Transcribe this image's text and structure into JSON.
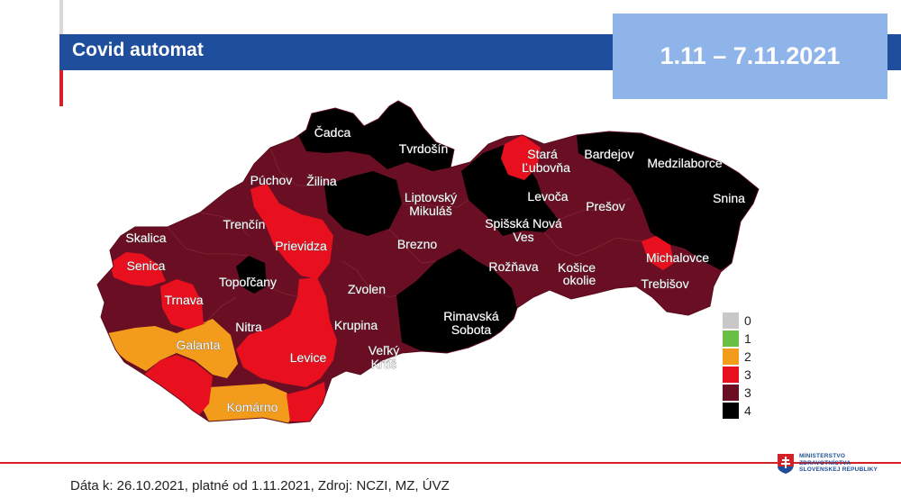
{
  "header": {
    "title": "Covid automat",
    "date_range": "1.11 – 7.11.2021"
  },
  "map": {
    "colors": {
      "0": "#c8c8c8",
      "1": "#6abf45",
      "2": "#f39c1c",
      "3": "#e8101e",
      "4": "#000000",
      "3dark": "#6a0f23"
    },
    "districts": [
      {
        "name": "Čadca",
        "level": 4
      },
      {
        "name": "Tvrdošín",
        "level": 4
      },
      {
        "name": "Stará Ľubovňa",
        "level": 3
      },
      {
        "name": "Bardejov",
        "level": 4
      },
      {
        "name": "Medzilaborce",
        "level": 4
      },
      {
        "name": "Púchov",
        "level": 3
      },
      {
        "name": "Žilina",
        "level": 3
      },
      {
        "name": "Liptovský Mikuláš",
        "level": 3
      },
      {
        "name": "Levoča",
        "level": 3
      },
      {
        "name": "Snina",
        "level": 4
      },
      {
        "name": "Trenčín",
        "level": 3
      },
      {
        "name": "Prešov",
        "level": 3
      },
      {
        "name": "Spišská Nová Ves",
        "level": 3
      },
      {
        "name": "Skalica",
        "level": 3
      },
      {
        "name": "Prievidza",
        "level": 3
      },
      {
        "name": "Brezno",
        "level": 3
      },
      {
        "name": "Senica",
        "level": 3
      },
      {
        "name": "Rožňava",
        "level": 3
      },
      {
        "name": "Košice okolie",
        "level": 3
      },
      {
        "name": "Michalovce",
        "level": 3
      },
      {
        "name": "Topoľčany",
        "level": 4
      },
      {
        "name": "Zvolen",
        "level": 3
      },
      {
        "name": "Trebišov",
        "level": 3
      },
      {
        "name": "Trnava",
        "level": 3
      },
      {
        "name": "Nitra",
        "level": 3
      },
      {
        "name": "Rimavská Sobota",
        "level": 4
      },
      {
        "name": "Krupina",
        "level": 3
      },
      {
        "name": "Galanta",
        "level": 2
      },
      {
        "name": "Veľký Krtíš",
        "level": 3
      },
      {
        "name": "Levice",
        "level": 3
      },
      {
        "name": "Komárno",
        "level": 2
      }
    ]
  },
  "legend": [
    {
      "label": "0",
      "color": "#c8c8c8"
    },
    {
      "label": "1",
      "color": "#6abf45"
    },
    {
      "label": "2",
      "color": "#f39c1c"
    },
    {
      "label": "3",
      "color": "#e8101e"
    },
    {
      "label": "3",
      "color": "#6a0f23"
    },
    {
      "label": "4",
      "color": "#000000"
    }
  ],
  "footer": {
    "text": "Dáta k: 26.10.2021, platné od 1.11.2021, Zdroj: NCZI, MZ, ÚVZ"
  },
  "ministry": {
    "line1": "MINISTERSTVO",
    "line2": "ZDRAVOTNÍCTVA",
    "line3": "SLOVENSKEJ REPUBLIKY"
  }
}
